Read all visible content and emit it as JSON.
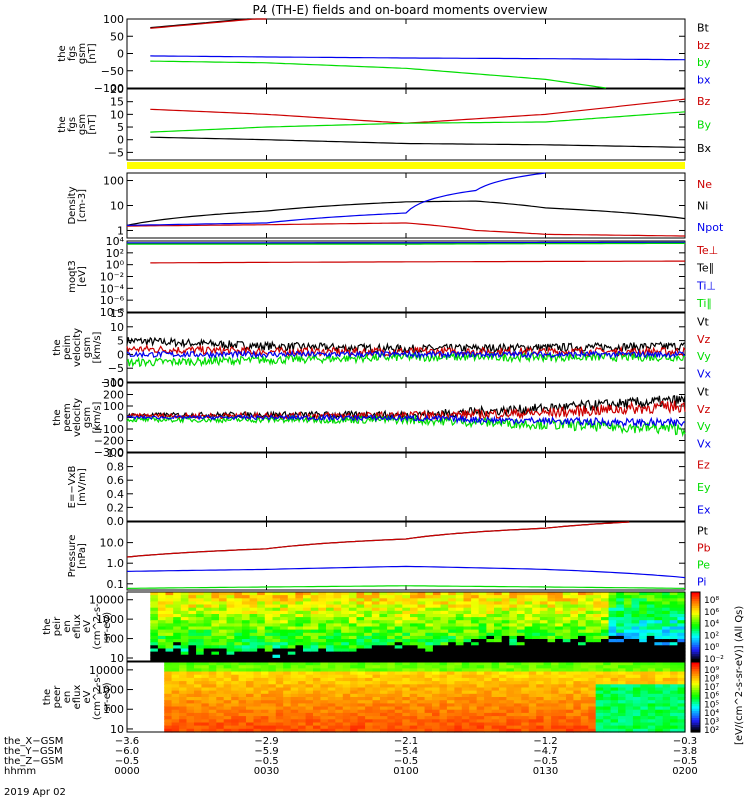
{
  "title": "P4 (TH-E) fields and on-board moments overview",
  "footer_date": "2019 Apr 02",
  "colorbar_label": "[eV/(cm^2-s-sr-eV)] (All Qs)",
  "colors": {
    "black": "#000000",
    "red": "#cc0000",
    "green": "#00dd00",
    "blue": "#0000ee",
    "yellow": "#ffff00"
  },
  "panels": [
    {
      "id": "fgs-gsm",
      "ylabel": [
        "the",
        "fgs",
        "gsm",
        "[nT]"
      ],
      "ylim": [
        -100,
        100
      ],
      "ticks": [
        {
          "v": 100,
          "l": "100"
        },
        {
          "v": 50,
          "l": "50"
        },
        {
          "v": 0,
          "l": "0"
        },
        {
          "v": -50,
          "l": "−50"
        },
        {
          "v": -100,
          "l": "−100"
        }
      ],
      "legend": [
        {
          "name": "Bt",
          "color": "black"
        },
        {
          "name": "bz",
          "color": "red"
        },
        {
          "name": "by",
          "color": "green"
        },
        {
          "name": "bx",
          "color": "blue"
        }
      ]
    },
    {
      "id": "fgs-gse",
      "ylabel": [
        "the",
        "fgs",
        "gsm",
        "[nT]"
      ],
      "ylim": [
        -8,
        20
      ],
      "ticks": [
        {
          "v": 20,
          "l": "20"
        },
        {
          "v": 15,
          "l": "15"
        },
        {
          "v": 10,
          "l": "10"
        },
        {
          "v": 5,
          "l": "5"
        },
        {
          "v": 0,
          "l": "0"
        },
        {
          "v": -5,
          "l": "−5"
        }
      ],
      "legend": [
        {
          "name": "Bz",
          "color": "red"
        },
        {
          "name": "By",
          "color": "green"
        },
        {
          "name": "Bx",
          "color": "black"
        }
      ]
    },
    {
      "id": "density",
      "ylabel": [
        "Density",
        "[cm-3]"
      ],
      "log": true,
      "ylim": [
        0.5,
        200
      ],
      "ticks": [
        {
          "v": 100,
          "l": "100"
        },
        {
          "v": 10,
          "l": "10"
        },
        {
          "v": 1,
          "l": "1"
        }
      ],
      "legend": [
        {
          "name": "Ne",
          "color": "red"
        },
        {
          "name": "Ni",
          "color": "black"
        },
        {
          "name": "Npot",
          "color": "blue"
        }
      ]
    },
    {
      "id": "temperature",
      "ylabel": [
        "moqt3",
        "[eV]"
      ],
      "log": true,
      "ylim": [
        1e-08,
        10000
      ],
      "ticks": [
        {
          "v": 10000,
          "l": "10⁴"
        },
        {
          "v": 100,
          "l": "10²"
        },
        {
          "v": 1,
          "l": "10⁰"
        },
        {
          "v": 0.01,
          "l": "10⁻²"
        },
        {
          "v": 0.0001,
          "l": "10⁻⁴"
        },
        {
          "v": 1e-06,
          "l": "10⁻⁶"
        },
        {
          "v": 1e-08,
          "l": "10⁻⁸"
        }
      ],
      "legend": [
        {
          "name": "Te⊥",
          "color": "red"
        },
        {
          "name": "Te∥",
          "color": "black"
        },
        {
          "name": "Ti⊥",
          "color": "blue"
        },
        {
          "name": "Ti∥",
          "color": "green"
        }
      ]
    },
    {
      "id": "peim-velocity",
      "ylabel": [
        "the",
        "peim",
        "velocity",
        "gsm",
        "[km/s]"
      ],
      "ylim": [
        -10,
        15
      ],
      "ticks": [
        {
          "v": 15,
          "l": "15"
        },
        {
          "v": 10,
          "l": "10"
        },
        {
          "v": 5,
          "l": "5"
        },
        {
          "v": 0,
          "l": "0"
        },
        {
          "v": -5,
          "l": "−5"
        },
        {
          "v": -10,
          "l": "−10"
        }
      ],
      "legend": [
        {
          "name": "Vt",
          "color": "black"
        },
        {
          "name": "Vz",
          "color": "red"
        },
        {
          "name": "Vy",
          "color": "green"
        },
        {
          "name": "Vx",
          "color": "blue"
        }
      ]
    },
    {
      "id": "peem-velocity",
      "ylabel": [
        "the",
        "peem",
        "velocity",
        "gsm",
        "[km/s]"
      ],
      "ylim": [
        -300,
        300
      ],
      "ticks": [
        {
          "v": 300,
          "l": "300"
        },
        {
          "v": 200,
          "l": "200"
        },
        {
          "v": 100,
          "l": "100"
        },
        {
          "v": 0,
          "l": "0"
        },
        {
          "v": -100,
          "l": "−100"
        },
        {
          "v": -200,
          "l": "−200"
        },
        {
          "v": -300,
          "l": "−300"
        }
      ],
      "legend": [
        {
          "name": "Vt",
          "color": "black"
        },
        {
          "name": "Vz",
          "color": "red"
        },
        {
          "name": "Vy",
          "color": "green"
        },
        {
          "name": "Vx",
          "color": "blue"
        }
      ]
    },
    {
      "id": "efield",
      "ylabel": [
        "E=−VxB",
        "[mV/m]"
      ],
      "ylim": [
        0,
        1
      ],
      "ticks": [
        {
          "v": 1,
          "l": "1.0"
        },
        {
          "v": 0.8,
          "l": "0.8"
        },
        {
          "v": 0.6,
          "l": "0.6"
        },
        {
          "v": 0.4,
          "l": "0.4"
        },
        {
          "v": 0.2,
          "l": "0.2"
        },
        {
          "v": 0,
          "l": "0.0"
        }
      ],
      "legend": [
        {
          "name": "Ez",
          "color": "red"
        },
        {
          "name": "Ey",
          "color": "green"
        },
        {
          "name": "Ex",
          "color": "blue"
        }
      ]
    },
    {
      "id": "pressure",
      "ylabel": [
        "Pressure",
        "[nPa]"
      ],
      "log": true,
      "ylim": [
        0.05,
        100
      ],
      "ticks": [
        {
          "v": 10,
          "l": "10.0"
        },
        {
          "v": 1,
          "l": "1.0"
        },
        {
          "v": 0.1,
          "l": "0.1"
        }
      ],
      "legend": [
        {
          "name": "Pt",
          "color": "black"
        },
        {
          "name": "Pb",
          "color": "red"
        },
        {
          "name": "Pe",
          "color": "green"
        },
        {
          "name": "Pi",
          "color": "blue"
        }
      ]
    },
    {
      "id": "peir-spectrogram",
      "ylabel": [
        "the",
        "peir",
        "en",
        "eflux",
        "eV",
        "(cm^2-s-",
        "sr-eV)"
      ],
      "log": true,
      "ylim": [
        7,
        25000
      ],
      "ticks": [
        {
          "v": 10000,
          "l": "10000"
        },
        {
          "v": 1000,
          "l": "1000"
        },
        {
          "v": 100,
          "l": "100"
        },
        {
          "v": 10,
          "l": "10"
        }
      ],
      "colorbar_ticks": [
        "10⁸",
        "10⁶",
        "10⁴",
        "10²",
        "10⁰",
        "10⁻²"
      ]
    },
    {
      "id": "peer-spectrogram",
      "ylabel": [
        "the",
        "peer",
        "en",
        "eflux",
        "eV",
        "(cm^2-s-",
        "sr-eV)"
      ],
      "log": true,
      "ylim": [
        7,
        25000
      ],
      "ticks": [
        {
          "v": 10000,
          "l": "10000"
        },
        {
          "v": 1000,
          "l": "1000"
        },
        {
          "v": 100,
          "l": "100"
        },
        {
          "v": 10,
          "l": "10"
        }
      ],
      "colorbar_ticks": [
        "10⁹",
        "10⁸",
        "10⁷",
        "10⁶",
        "10⁵",
        "10⁴",
        "10³",
        "10²"
      ]
    }
  ],
  "axis": {
    "rows": [
      {
        "name": "the_X−GSM",
        "values": [
          "−3.6",
          "−2.9",
          "−2.1",
          "−1.2",
          "−0.3"
        ]
      },
      {
        "name": "the_Y−GSM",
        "values": [
          "−6.0",
          "−5.9",
          "−5.4",
          "−4.7",
          "−3.8"
        ]
      },
      {
        "name": "the_Z−GSM",
        "values": [
          "−0.5",
          "−0.5",
          "−0.5",
          "−0.5",
          "−0.5"
        ]
      },
      {
        "name": "hhmm",
        "values": [
          "0000",
          "0030",
          "0100",
          "0130",
          "0200"
        ]
      }
    ]
  },
  "chart_data": {
    "type": "line",
    "title": "P4 (TH-E) fields and on-board moments overview",
    "x_unit": "minutes since 2019-04-02 00:00",
    "x_range": [
      0,
      120
    ],
    "x_ticks": [
      "0000",
      "0030",
      "0100",
      "0130",
      "0200"
    ],
    "panels": [
      {
        "id": "fgs-gsm",
        "series": [
          {
            "name": "Bt",
            "x": [
              5,
              30
            ],
            "y": [
              75,
              105
            ]
          },
          {
            "name": "bz",
            "x": [
              5,
              30
            ],
            "y": [
              73,
              103
            ]
          },
          {
            "name": "by",
            "x": [
              5,
              30,
              60,
              90,
              103
            ],
            "y": [
              -22,
              -27,
              -43,
              -75,
              -100
            ]
          },
          {
            "name": "bx",
            "x": [
              5,
              30,
              60,
              90,
              120
            ],
            "y": [
              -7,
              -10,
              -13,
              -15,
              -18
            ]
          }
        ]
      },
      {
        "id": "fgs-gse",
        "series": [
          {
            "name": "Bz",
            "x": [
              5,
              30,
              60,
              90,
              120
            ],
            "y": [
              12,
              10,
              6.5,
              10,
              16
            ]
          },
          {
            "name": "By",
            "x": [
              5,
              30,
              60,
              90,
              120
            ],
            "y": [
              3,
              5,
              6.5,
              7,
              11
            ]
          },
          {
            "name": "Bx",
            "x": [
              5,
              30,
              60,
              90,
              120
            ],
            "y": [
              1,
              0,
              -1.5,
              -2,
              -3
            ]
          }
        ]
      },
      {
        "id": "density",
        "series": [
          {
            "name": "Ne",
            "x": [
              0,
              30,
              60,
              75,
              90,
              120
            ],
            "y": [
              1.5,
              1.7,
              2,
              1.0,
              0.7,
              0.6
            ]
          },
          {
            "name": "Ni",
            "x": [
              0,
              30,
              60,
              75,
              90,
              120
            ],
            "y": [
              1.6,
              6,
              14,
              15,
              8,
              3
            ]
          },
          {
            "name": "Npot",
            "x": [
              0,
              30,
              60,
              75,
              90
            ],
            "y": [
              1.6,
              2,
              5,
              40,
              200
            ]
          }
        ]
      },
      {
        "id": "temperature",
        "series": [
          {
            "name": "Te⊥",
            "x": [
              5,
              60,
              120
            ],
            "y": [
              2,
              3,
              4
            ]
          },
          {
            "name": "Te∥",
            "x": [
              0,
              60,
              120
            ],
            "y": [
              4000,
              5000,
              5000
            ]
          },
          {
            "name": "Ti⊥",
            "x": [
              0,
              60,
              120
            ],
            "y": [
              5000,
              5000,
              6000
            ]
          },
          {
            "name": "Ti∥",
            "x": [
              0,
              60,
              120
            ],
            "y": [
              3000,
              3000,
              4000
            ]
          }
        ]
      },
      {
        "id": "peim-velocity",
        "series": [
          {
            "name": "Vt",
            "x": [
              0,
              30,
              60,
              90,
              120
            ],
            "y": [
              5,
              3,
              2,
              2.5,
              3
            ]
          },
          {
            "name": "Vz",
            "x": [
              0,
              30,
              60,
              90,
              120
            ],
            "y": [
              2,
              1,
              1,
              1,
              1
            ]
          },
          {
            "name": "Vy",
            "x": [
              0,
              30,
              60,
              90,
              120
            ],
            "y": [
              -3,
              -2,
              -1,
              -1,
              -1
            ]
          },
          {
            "name": "Vx",
            "x": [
              0,
              30,
              60,
              90,
              120
            ],
            "y": [
              0,
              0,
              0,
              0,
              0
            ]
          }
        ]
      },
      {
        "id": "peem-velocity",
        "series": [
          {
            "name": "Vt",
            "x": [
              0,
              30,
              60,
              90,
              120
            ],
            "y": [
              20,
              25,
              20,
              80,
              150
            ]
          },
          {
            "name": "Vz",
            "x": [
              0,
              30,
              60,
              90,
              120
            ],
            "y": [
              15,
              15,
              15,
              40,
              100
            ]
          },
          {
            "name": "Vy",
            "x": [
              0,
              30,
              60,
              90,
              120
            ],
            "y": [
              -20,
              -20,
              -20,
              -60,
              -100
            ]
          },
          {
            "name": "Vx",
            "x": [
              0,
              30,
              60,
              90,
              120
            ],
            "y": [
              0,
              0,
              -5,
              -30,
              -50
            ]
          }
        ]
      },
      {
        "id": "pressure",
        "series": [
          {
            "name": "Pt",
            "x": [
              0,
              30,
              60,
              90,
              108
            ],
            "y": [
              2,
              5,
              15,
              50,
              100
            ]
          },
          {
            "name": "Pb",
            "x": [
              0,
              30,
              60,
              90,
              108
            ],
            "y": [
              2,
              5,
              15,
              50,
              100
            ]
          },
          {
            "name": "Pe",
            "x": [
              0,
              30,
              60,
              90,
              120
            ],
            "y": [
              0.06,
              0.07,
              0.08,
              0.07,
              0.06
            ]
          },
          {
            "name": "Pi",
            "x": [
              0,
              30,
              60,
              90,
              120
            ],
            "y": [
              0.4,
              0.5,
              0.7,
              0.5,
              0.2
            ]
          }
        ]
      }
    ]
  }
}
